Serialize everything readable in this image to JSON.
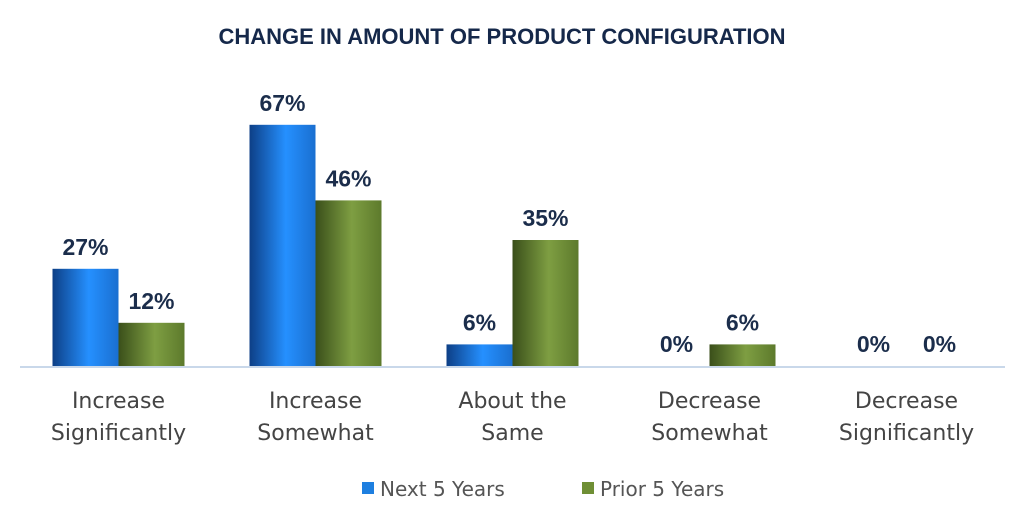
{
  "chart_data": {
    "type": "bar",
    "title": "CHANGE IN AMOUNT OF PRODUCT CONFIGURATION",
    "categories": [
      [
        "Increase",
        "Significantly"
      ],
      [
        "Increase",
        "Somewhat"
      ],
      [
        "About the",
        "Same"
      ],
      [
        "Decrease",
        "Somewhat"
      ],
      [
        "Decrease",
        "Significantly"
      ]
    ],
    "series": [
      {
        "name": "Next 5 Years",
        "color": "#1e7fe0",
        "values": [
          27,
          67,
          6,
          0,
          0
        ],
        "labels": [
          "27%",
          "67%",
          "6%",
          "0%",
          "0%"
        ]
      },
      {
        "name": "Prior 5 Years",
        "color": "#6f8f35",
        "values": [
          12,
          46,
          35,
          6,
          0
        ],
        "labels": [
          "12%",
          "46%",
          "35%",
          "6%",
          "0%"
        ]
      }
    ],
    "ylim": [
      0,
      75
    ],
    "grid": false,
    "legend": "bottom"
  }
}
